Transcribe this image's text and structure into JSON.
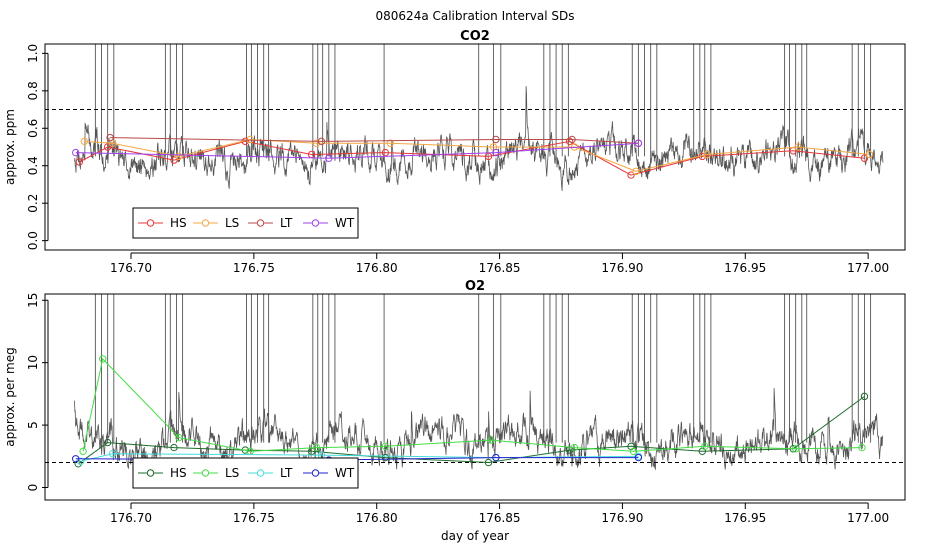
{
  "figure": {
    "super_title": "080624a   Calibration Interval SDs"
  },
  "chart_data": [
    {
      "type": "line",
      "title": "CO2",
      "xlabel": "",
      "ylabel": "approx. ppm",
      "xlim": [
        176.665,
        177.015
      ],
      "ylim": [
        -0.05,
        1.05
      ],
      "xticks": [
        176.7,
        176.75,
        176.8,
        176.85,
        176.9,
        176.95,
        177.0
      ],
      "xtick_labels": [
        "176.70",
        "176.75",
        "176.80",
        "176.85",
        "176.90",
        "176.95",
        "177.00"
      ],
      "yticks": [
        0.0,
        0.2,
        0.4,
        0.6,
        0.8,
        1.0
      ],
      "ytick_labels": [
        "0.0",
        "0.2",
        "0.4",
        "0.6",
        "0.8",
        "1.0"
      ],
      "threshold": 0.7,
      "legend_position": "bottom-left",
      "trace": {
        "base": 0.45,
        "amp": 0.07,
        "seed": 7,
        "color": "#555555"
      },
      "spike_times": [
        176.6855,
        176.688,
        176.6905,
        176.693,
        176.714,
        176.716,
        176.7185,
        176.721,
        176.747,
        176.749,
        176.7515,
        176.754,
        176.756,
        176.774,
        176.776,
        176.778,
        176.7805,
        176.783,
        176.803,
        176.8415,
        176.8475,
        176.8505,
        176.868,
        176.8705,
        176.873,
        176.8755,
        176.878,
        176.904,
        176.9065,
        176.909,
        176.9115,
        176.914,
        176.929,
        176.9315,
        176.9335,
        176.936,
        176.966,
        176.968,
        176.9705,
        176.973,
        176.975,
        176.9935,
        176.996,
        176.9985,
        177.001
      ],
      "series": [
        {
          "name": "HS",
          "color": "#e8383b",
          "x": [
            176.679,
            176.6905,
            176.7175,
            176.7465,
            176.7735,
            176.8035,
            176.8455,
            176.8785,
            176.9035,
            176.9325,
            176.9695,
            176.9985
          ],
          "y": [
            0.42,
            0.5,
            0.43,
            0.53,
            0.46,
            0.47,
            0.45,
            0.53,
            0.35,
            0.45,
            0.48,
            0.44
          ]
        },
        {
          "name": "LS",
          "color": "#f4a742",
          "x": [
            176.681,
            176.6925,
            176.7195,
            176.7485,
            176.7755,
            176.8055,
            176.8475,
            176.8805,
            176.9055,
            176.9345,
            176.9715,
            177.0005
          ],
          "y": [
            0.53,
            0.52,
            0.45,
            0.54,
            0.52,
            0.52,
            0.5,
            0.5,
            0.37,
            0.46,
            0.5,
            0.46
          ]
        },
        {
          "name": "LT",
          "color": "#b94a48",
          "x": [
            176.6915,
            176.7775,
            176.8485,
            176.8795,
            176.9065
          ],
          "y": [
            0.55,
            0.53,
            0.54,
            0.54,
            0.52
          ]
        },
        {
          "name": "WT",
          "color": "#a040f0",
          "x": [
            176.6775,
            176.7805,
            176.8485,
            176.9065
          ],
          "y": [
            0.47,
            0.44,
            0.47,
            0.52
          ]
        }
      ]
    },
    {
      "type": "line",
      "title": "O2",
      "xlabel": "day of year",
      "ylabel": "approx. per meg",
      "xlim": [
        176.665,
        177.015
      ],
      "ylim": [
        -1,
        15.5
      ],
      "xticks": [
        176.7,
        176.75,
        176.8,
        176.85,
        176.9,
        176.95,
        177.0
      ],
      "xtick_labels": [
        "176.70",
        "176.75",
        "176.80",
        "176.85",
        "176.90",
        "176.95",
        "177.00"
      ],
      "yticks": [
        0,
        5,
        10,
        15
      ],
      "ytick_labels": [
        "0",
        "5",
        "10",
        "15"
      ],
      "threshold": 2,
      "legend_position": "bottom-left",
      "trace": {
        "base": 3.6,
        "amp": 1.1,
        "seed": 19,
        "color": "#555555"
      },
      "spike_times": [
        176.6855,
        176.688,
        176.6905,
        176.693,
        176.714,
        176.716,
        176.7185,
        176.721,
        176.747,
        176.749,
        176.7515,
        176.754,
        176.756,
        176.774,
        176.776,
        176.778,
        176.7805,
        176.783,
        176.803,
        176.8415,
        176.8475,
        176.8505,
        176.868,
        176.8705,
        176.873,
        176.8755,
        176.878,
        176.904,
        176.9065,
        176.909,
        176.9115,
        176.914,
        176.929,
        176.9315,
        176.9335,
        176.936,
        176.966,
        176.968,
        176.9705,
        176.973,
        176.975,
        176.9935,
        176.996,
        176.9985,
        177.001
      ],
      "series": [
        {
          "name": "HS",
          "color": "#1e6b2e",
          "x": [
            176.6785,
            176.6905,
            176.7175,
            176.7465,
            176.7735,
            176.8035,
            176.8455,
            176.8785,
            176.9035,
            176.9325,
            176.9695,
            176.9985
          ],
          "y": [
            1.9,
            3.6,
            3.2,
            3.0,
            2.9,
            2.4,
            2.0,
            3.0,
            3.3,
            2.9,
            3.1,
            7.3
          ]
        },
        {
          "name": "LS",
          "color": "#44dd44",
          "x": [
            176.6805,
            176.6885,
            176.7195,
            176.7485,
            176.7755,
            176.8035,
            176.8465,
            176.8805,
            176.9045,
            176.9335,
            176.9705,
            176.9975
          ],
          "y": [
            2.9,
            10.3,
            4.0,
            2.9,
            3.2,
            3.3,
            3.8,
            3.2,
            2.9,
            3.3,
            3.1,
            3.2
          ]
        },
        {
          "name": "LT",
          "color": "#44dddd",
          "x": [
            176.6795,
            176.6925,
            176.7775,
            176.8485,
            176.9065
          ],
          "y": [
            2.1,
            2.7,
            2.6,
            2.4,
            2.5
          ]
        },
        {
          "name": "WT",
          "color": "#2222cc",
          "x": [
            176.6775,
            176.7805,
            176.8485,
            176.9065
          ],
          "y": [
            2.3,
            2.2,
            2.4,
            2.4
          ]
        }
      ]
    }
  ]
}
